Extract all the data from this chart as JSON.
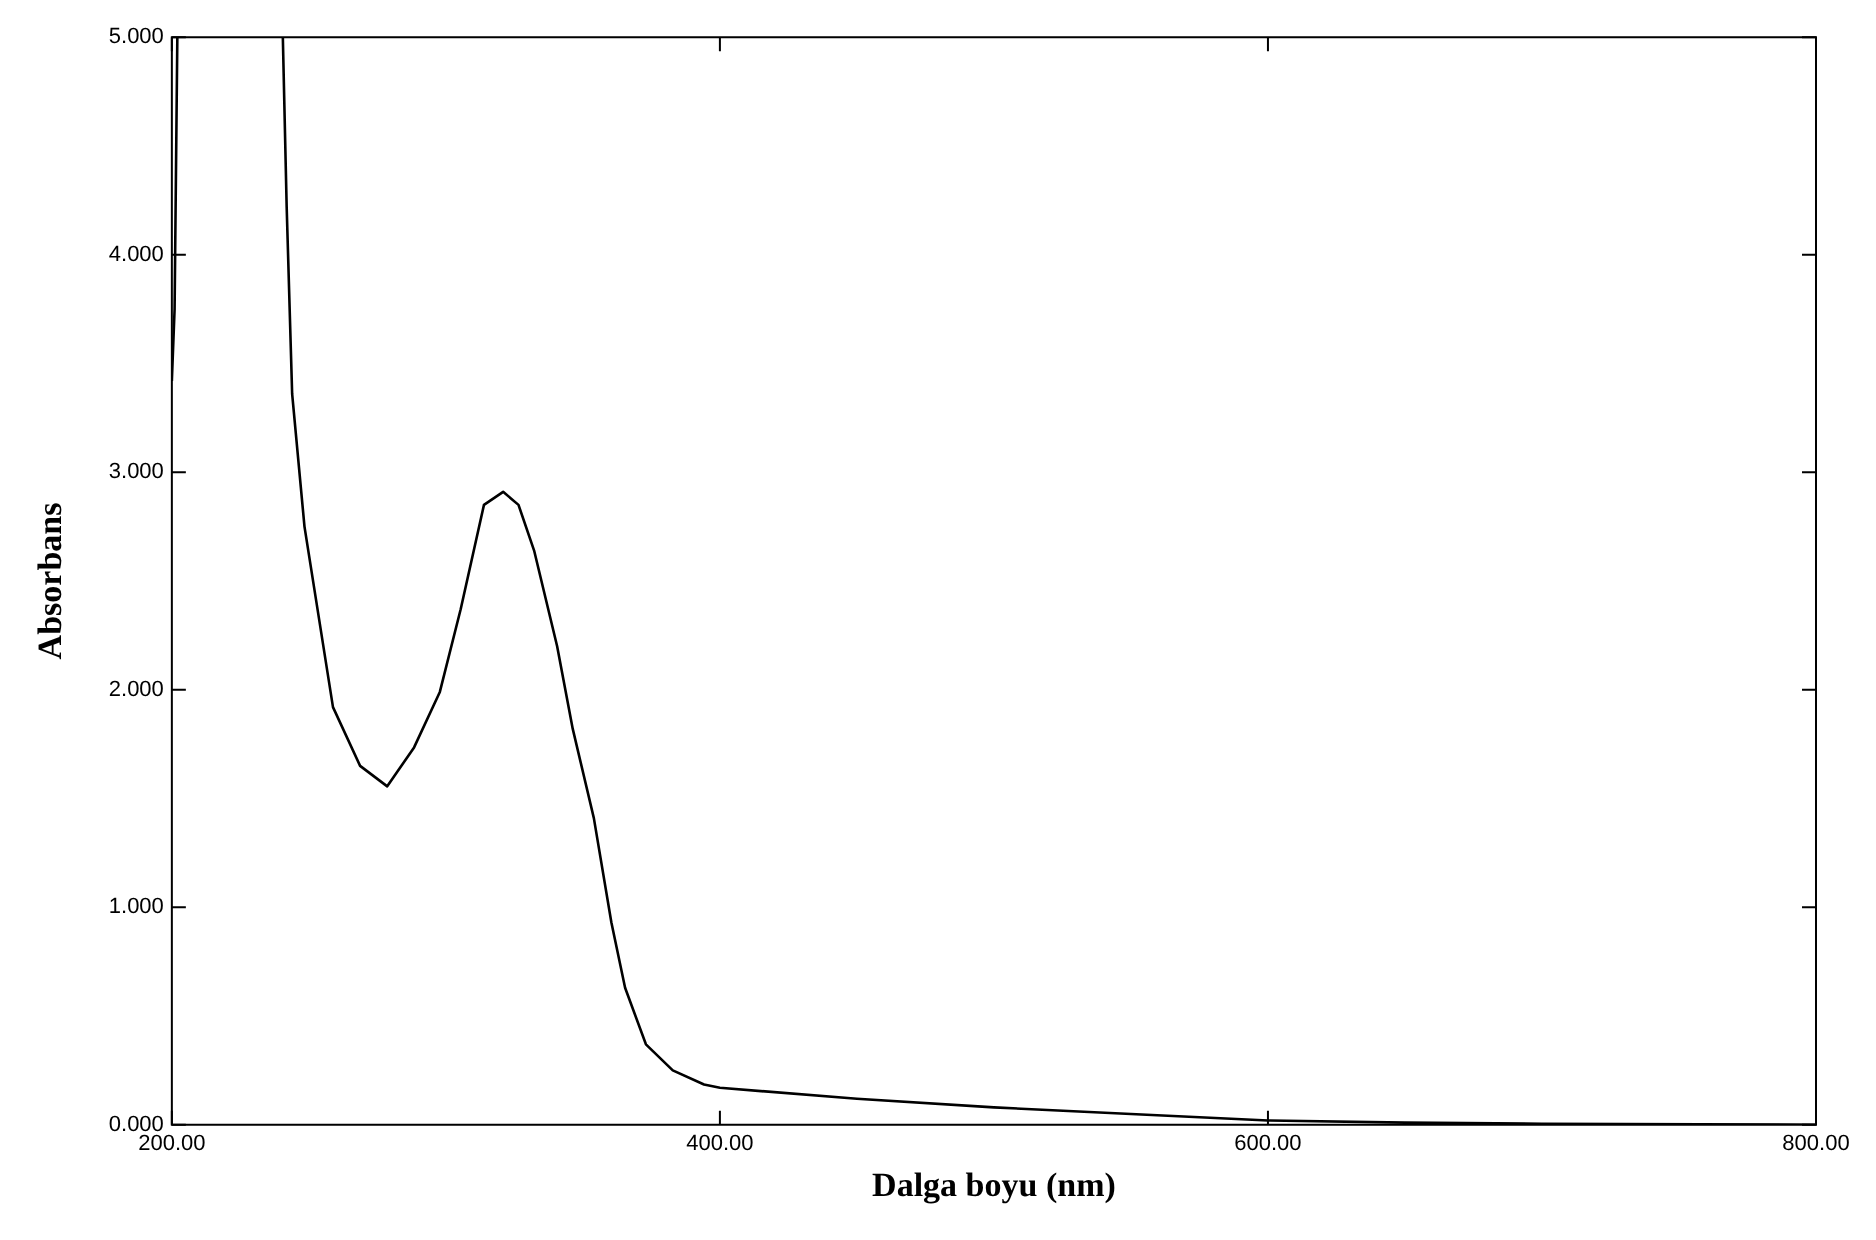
{
  "chart_data": {
    "type": "line",
    "xlabel": "Dalga boyu (nm)",
    "ylabel": "Absorbans",
    "x": [
      200,
      201,
      202,
      203,
      239,
      240.5,
      241.9,
      243.9,
      248.4,
      258.8,
      268.7,
      278.6,
      288.4,
      297.8,
      305.4,
      313.9,
      320.9,
      326.5,
      332.2,
      340.6,
      346.3,
      354,
      360.4,
      365.4,
      373,
      382.8,
      394.2,
      400,
      450,
      500,
      550,
      600,
      650,
      700,
      800
    ],
    "series": [
      {
        "color": "#000000",
        "values": [
          3.42,
          3.75,
          5.0,
          null,
          null,
          5.0,
          4.22,
          3.36,
          2.75,
          1.92,
          1.65,
          1.556,
          1.735,
          1.99,
          2.37,
          2.85,
          2.91,
          2.85,
          2.64,
          2.2,
          1.82,
          1.41,
          0.93,
          0.63,
          0.37,
          0.25,
          0.185,
          0.17,
          0.12,
          0.08,
          0.05,
          0.02,
          0.01,
          0.005,
          0
        ]
      }
    ],
    "xlim": [
      200,
      800
    ],
    "xticks": [
      {
        "value": 200,
        "label": "200.00"
      },
      {
        "value": 400,
        "label": "400.00"
      },
      {
        "value": 600,
        "label": "600.00"
      },
      {
        "value": 800,
        "label": "800.00"
      }
    ],
    "ylim": [
      0,
      5
    ],
    "yticks": [
      {
        "value": 0,
        "label": "0.000"
      },
      {
        "value": 1,
        "label": "1.000"
      },
      {
        "value": 2,
        "label": "2.000"
      },
      {
        "value": 3,
        "label": "3.000"
      },
      {
        "value": 4,
        "label": "4.000"
      },
      {
        "value": 5,
        "label": "5.000"
      }
    ],
    "grid": false,
    "legend": false,
    "marker": "none",
    "line_style": "solid"
  }
}
